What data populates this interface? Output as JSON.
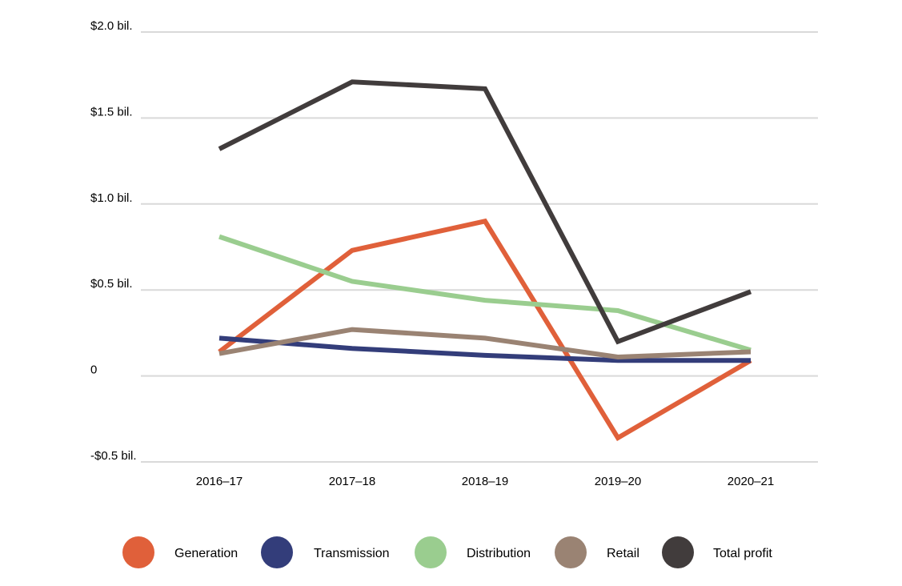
{
  "chart_data": {
    "type": "line",
    "title": "",
    "xlabel": "",
    "ylabel": "",
    "categories": [
      "2016–17",
      "2017–18",
      "2018–19",
      "2019–20",
      "2020–21"
    ],
    "ylim": [
      -0.5,
      2.0
    ],
    "yticks": [
      2.0,
      1.5,
      1.0,
      0.5,
      0,
      -0.5
    ],
    "ytick_labels": [
      "$2.0 bil.",
      "$1.5 bil.",
      "$1.0 bil.",
      "$0.5 bil.",
      "0",
      "-$0.5 bil."
    ],
    "grid": "horizontal",
    "legend_position": "bottom",
    "series": [
      {
        "name": "Generation",
        "color": "#e0603a",
        "values": [
          0.14,
          0.73,
          0.9,
          -0.36,
          0.09
        ]
      },
      {
        "name": "Transmission",
        "color": "#333d7a",
        "values": [
          0.22,
          0.16,
          0.12,
          0.09,
          0.09
        ]
      },
      {
        "name": "Distribution",
        "color": "#9acd8f",
        "values": [
          0.81,
          0.55,
          0.44,
          0.38,
          0.15
        ]
      },
      {
        "name": "Retail",
        "color": "#9a8373",
        "values": [
          0.13,
          0.27,
          0.22,
          0.11,
          0.14
        ]
      },
      {
        "name": "Total profit",
        "color": "#413c3c",
        "values": [
          1.32,
          1.71,
          1.67,
          0.2,
          0.49
        ]
      }
    ]
  }
}
